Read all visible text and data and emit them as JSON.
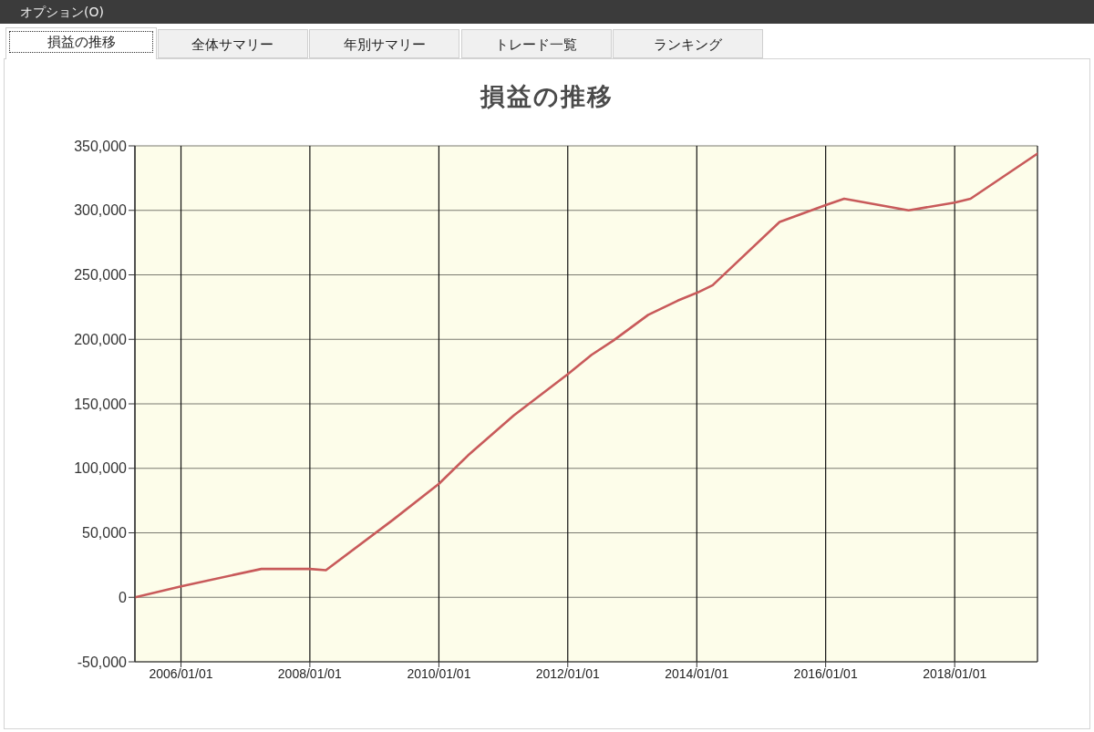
{
  "chart_data": {
    "type": "line",
    "title": "損益の推移",
    "annotations": [
      "オプション(O)",
      "損益の推移",
      "全体サマリー",
      "年別サマリー",
      "トレード一覧",
      "ランキング"
    ],
    "x": [
      "2005-04-15",
      "2006-01-01",
      "2007-04-01",
      "2008-01-01",
      "2008-04-01",
      "2009-04-15",
      "2010-01-01",
      "2010-06-15",
      "2011-03-01",
      "2012-01-01",
      "2012-05-15",
      "2012-09-15",
      "2013-04-01",
      "2013-09-15",
      "2014-01-01",
      "2014-04-01",
      "2015-04-15",
      "2016-01-01",
      "2016-04-15",
      "2017-04-15",
      "2018-01-01",
      "2018-04-01",
      "2019-04-15"
    ],
    "values": [
      0,
      8500,
      22000,
      22000,
      21000,
      60000,
      88000,
      110000,
      141000,
      173000,
      188000,
      199000,
      219000,
      230000,
      236000,
      242000,
      291000,
      304000,
      309000,
      300000,
      306000,
      309000,
      344000
    ],
    "color": "#c85a5a",
    "xlim": [
      "2005-04-15",
      "2019-04-15"
    ],
    "xticks": [
      {
        "value": "2006-01-01",
        "label": "2006/01/01"
      },
      {
        "value": "2008-01-01",
        "label": "2008/01/01"
      },
      {
        "value": "2010-01-01",
        "label": "2010/01/01"
      },
      {
        "value": "2012-01-01",
        "label": "2012/01/01"
      },
      {
        "value": "2014-01-01",
        "label": "2014/01/01"
      },
      {
        "value": "2016-01-01",
        "label": "2016/01/01"
      },
      {
        "value": "2018-01-01",
        "label": "2018/01/01"
      }
    ],
    "ylim": [
      -50000,
      350000
    ],
    "yticks": [
      {
        "value": -50000,
        "label": "-50,000"
      },
      0,
      {
        "value": 50000,
        "label": "50,000"
      },
      {
        "value": 100000,
        "label": "100,000"
      },
      {
        "value": 150000,
        "label": "150,000"
      },
      {
        "value": 200000,
        "label": "200,000"
      },
      {
        "value": 250000,
        "label": "250,000"
      },
      {
        "value": 300000,
        "label": "300,000"
      },
      {
        "value": 350000,
        "label": "350,000"
      }
    ],
    "grid": true
  }
}
